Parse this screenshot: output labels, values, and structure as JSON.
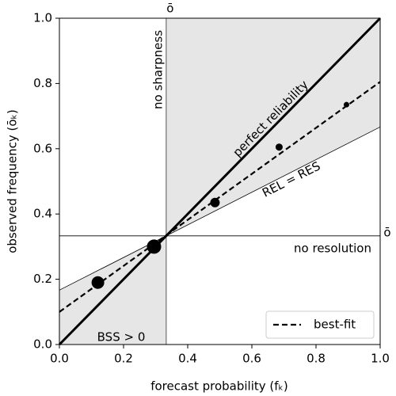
{
  "chart_data": {
    "type": "scatter",
    "x_label": "forecast probability (fₖ)",
    "y_label": "observed frequency (ōₖ)",
    "xlim": [
      0,
      1
    ],
    "ylim": [
      0,
      1
    ],
    "xticks": [
      {
        "value": 0,
        "label": "0.0"
      },
      0.2,
      0.4,
      0.6,
      0.8,
      {
        "value": 1,
        "label": "1.0"
      }
    ],
    "yticks": [
      {
        "value": 0,
        "label": "0.0"
      },
      0.2,
      0.4,
      0.6,
      0.8,
      {
        "value": 1,
        "label": "1.0"
      }
    ],
    "climatology": 0.333,
    "climatology_label_top": "ō",
    "climatology_label_right": "ō",
    "points": {
      "x": [
        0.12,
        0.295,
        0.485,
        0.685,
        0.895
      ],
      "values": [
        0.19,
        0.3,
        0.435,
        0.605,
        0.735
      ],
      "sizes": [
        8,
        9,
        6,
        4.5,
        3.5
      ],
      "color": "#000000"
    },
    "perfect_reliability": {
      "x": [
        0,
        1
      ],
      "values": [
        0,
        1
      ]
    },
    "no_skill": {
      "x": [
        0,
        1
      ],
      "values": [
        0.1667,
        0.6667
      ]
    },
    "best_fit": {
      "name": "best-fit",
      "x": [
        0,
        1
      ],
      "values": [
        0.1,
        0.805
      ],
      "color": "#000000"
    },
    "shade_color": "#e6e6e6",
    "annotations": {
      "no_sharpness": "no sharpness",
      "perfect_reliability": "perfect reliability",
      "rel_res": "REL = RES",
      "no_resolution": "no resolution",
      "bss": "BSS > 0"
    },
    "legend": "lower right"
  }
}
